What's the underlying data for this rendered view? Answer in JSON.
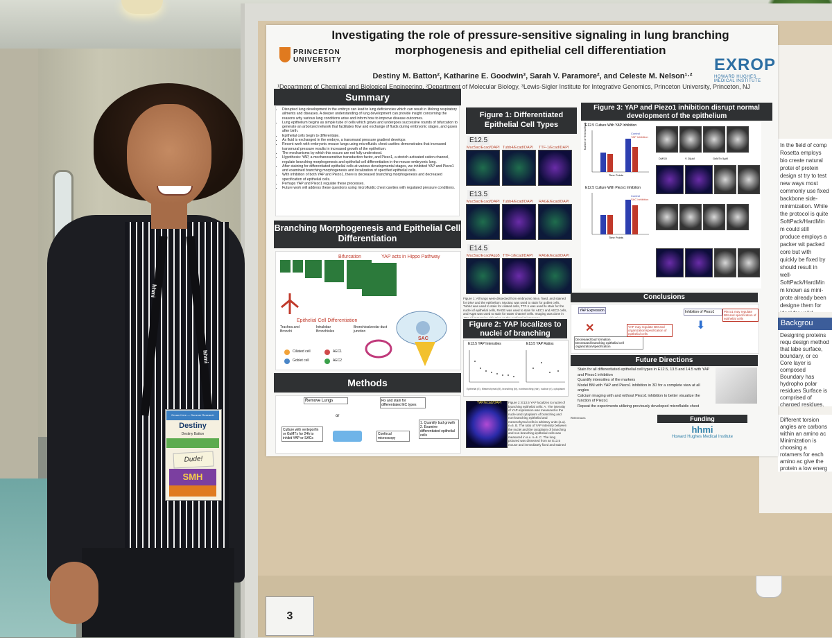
{
  "poster": {
    "title": "Investigating the role of pressure-sensitive signaling in lung branching morphogenesis and epithelial cell differentiation",
    "institution": "PRINCETON UNIVERSITY",
    "partner_logo": "EXROP",
    "partner_logo_sub": "HOWARD HUGHES MEDICAL INSTITUTE",
    "authors": "Destiny M. Batton², Katharine E. Goodwin³, Sarah V. Paramore², and Celeste M. Nelson¹·²",
    "affiliations": "¹Department of Chemical and Biological Engineering, ²Department of Molecular Biology, ³Lewis-Sigler Institute for Integrative Genomics, Princeton University, Princeton, NJ",
    "summary": {
      "heading": "Summary",
      "bullets": [
        "Disrupted lung development in the embryo can lead to lung deficiencies which can result in lifelong respiratory ailments and diseases. A deeper understanding of lung development can provide insight concerning the reasons why various lung conditions arise and inform how to improve disease outcomes.",
        "Lung epithelium begins as simple tube of cells which grows and undergoes successive rounds of bifurcation to generate an arborized network that facilitates flow and exchange of fluids during embryonic stages, and gases after birth.",
        "Epithelial cells begin to differentiate.",
        "As fluid is exchanged in the embryo, a transmural pressure gradient develops",
        "Recent work with embryonic mouse lungs using microfluidic chest cavities demonstrates that increased transmural pressure results in increased growth of the epithelium.",
        "The mechanisms by which this occurs are not fully understood.",
        "Hypothesis: YAP, a mechanosensitive transduction factor, and Piezo1, a stretch-activated cation channel, regulate branching morphogenesis and epithelial cell differentiation in the mouse embryonic lung.",
        "After staining for differentiated epithelial cells at various developmental stages, we inhibited YAP and Piezo1 and examined branching morphogenesis and localization of specified epithelial cells.",
        "With inhibition of both YAP and Piezo1, there is decreased branching morphogenesis and decreased specification of epithelial cells.",
        "Perhaps YAP and Piezo1 regulate these processes.",
        "Future work will address these questions using microfluidic chest cavities with regulated pressure conditions."
      ]
    },
    "branching": {
      "heading": "Branching Morphogenesis and Epithelial Cell Differentiation",
      "labels": [
        "Bifurcation",
        "YAP acts in Hippo Pathway",
        "Epithelial Cell Differentiation",
        "Trachea and Bronchi",
        "Intralobar Bronchioles",
        "Bronchioalveolar duct junction",
        "Ciliated cell",
        "Goblet cell",
        "AEC1",
        "AEC2",
        "SAC"
      ]
    },
    "methods": {
      "heading": "Methods",
      "steps": [
        "Remove Lungs",
        "Fix and stain for differentiated EC types",
        "Culture with verteporfin or GsMTx for 24h to inhibit YAP or SACs",
        "or",
        "Confocal microscopy",
        "1. Quantify bud growth 2. Examine differentiated epithelial cells"
      ]
    },
    "figure1": {
      "heading": "Figure 1: Differentiated Epithelial Cell Types",
      "stages": [
        "E12.5",
        "E13.5",
        "E14.5"
      ],
      "rows": [
        [
          "Muc5ac/Ecad/DAPI",
          "Tubb4/Ecad/DAPI",
          "TTF-1/Ecad/DAPI"
        ],
        [
          "Muc5ac/Ecad/DAPI",
          "Tubb4/Ecad/DAPI",
          "RAGE/Ecad/DAPI"
        ],
        [
          "Muc5ac/Ecad/Aqp5",
          "TTF-1/Ecad/DAPI",
          "RAGE/Ecad/DAPI"
        ]
      ],
      "caption": "Figure 1: All lungs were dissected from embryonic mice, fixed, and stained for DNA and the epithelium. Muc5ac was used to stain for goblet cells, Tubb4 was used to stain for ciliated cells, TTF-1 was used to stain for the nuclei of epithelial cells, RAGE was used to stain for AEC1 and AEC2 cells, and Aqp5 was used to stain for water channel cells. Imaging was done in 40X oil immersion objective on the confocal microscope."
    },
    "figure2": {
      "heading": "Figure 2: YAP localizes to nuclei of branching epithelial cells",
      "panel_a": "E13.5 YAP Intensities",
      "panel_b": "E13.5 YAP Ratios",
      "panel_c": "YAP/Ecad/DAPI",
      "xlabel": "Epithelial (E), Mesenchymal (M), branching (br), nonbranching (nbr), nuclear (n), cytoplasmic (c)",
      "caption": "Figure 2: E13.5 YAP localizes to nuclei of branching epithelial cells: A. The intensity of YAP expression was measured in the nuclei and cytoplasm of branching and non-branching epithelial and mesenchymal cells in arbitrary units (a.u). n=6. B. The ratio of YAP intensity between the nuclei and the cytoplasm of branching and non-branching epithelial cells was measured in a.u. n=6. C. The lung pictured was dissected from an E13.5 mouse and immediately fixed and stained for YAP, the epithelium, and DNA."
    },
    "figure3": {
      "heading": "Figure 3: YAP and Piezo1 inhibition disrupt normal development of the epithelium",
      "panel_a_title": "E12.5 Culture With YAP Inhibition",
      "panel_d_title": "E12.5 Culture With Piezo1 Inhibition",
      "legend_a": [
        "Control",
        "YAP Inhibition"
      ],
      "legend_d": [
        "Control",
        "SAC Inhibition"
      ],
      "ylabel": "Number of Terminal Buds",
      "xlabel": "Time Points",
      "tags": [
        "DMSO",
        "V 20µM",
        "GsMTx 5µM"
      ]
    },
    "conclusions": {
      "heading": "Conclusions",
      "items": [
        "YAP Expression",
        "Decreased bud formation",
        "Decreased branching epithelial cell organization/specification",
        "YAP may regulate BM and organization/specification of epithelial cells",
        "Inhibition of Piezo1",
        "Piezo1 may regulate BM and specification of epithelial cells"
      ]
    },
    "future": {
      "heading": "Future Directions",
      "items": [
        "Stain for all differentiated epithelial cell types in E12.5, 13.5 and 14.5 with YAP and Piezo1 inhibition",
        "Quantify intensities of the markers",
        "Model BM with YAP and Piezo1 inhibition in 3D for a complete view at all angles",
        "Calcium imaging with and without Piezo1 inhibition to better visualize the function of Piezo1",
        "Repeat the experiments utilizing previously developed microfluidic chest cavities at high and low ΔP"
      ]
    },
    "references_heading": "References",
    "funding": {
      "heading": "Funding",
      "logo": "hhmi",
      "sub": "Howard Hughes Medical Institute"
    }
  },
  "right_poster": {
    "text": "In the field of comp Rosetta employs bio create natural protei of protein design st try to test new ways most commonly use fixed backbone side- minimization. While the protocol is quite SoftPack/HardMin m could still produce employs a packer wit packed core but with quickly be fixed by should result in well- SoftPack/HardMin m known as mini-prote already been designe them for ideal for valid produced designs 20 lacked a hydrophobic Incorporating fast tech the SoftPack/HardMin necessary to achieve a modifications the SoftPa efficient resulting into an",
    "background_heading": "Backgrou",
    "background_items": "Designing proteins requ design method that labe surface, boundary, or co Core layer is composed Boundary has hydropho polar residues Surface is comprised of charged residues. It's crucial for formulatio protein when exposed to water).",
    "background_items_2": "Different torsion angles are carbons within an amino ac Minimization is choosing a rotamers for each amino ac give the protein a low energ"
  },
  "board_number": "3",
  "badge": {
    "header": "Dream Here — Summer Research",
    "name": "Destiny",
    "subtitle": "Destiny Batton",
    "sticker": "Dude!",
    "tag": "SMH"
  },
  "lanyard_text": "hhmi"
}
